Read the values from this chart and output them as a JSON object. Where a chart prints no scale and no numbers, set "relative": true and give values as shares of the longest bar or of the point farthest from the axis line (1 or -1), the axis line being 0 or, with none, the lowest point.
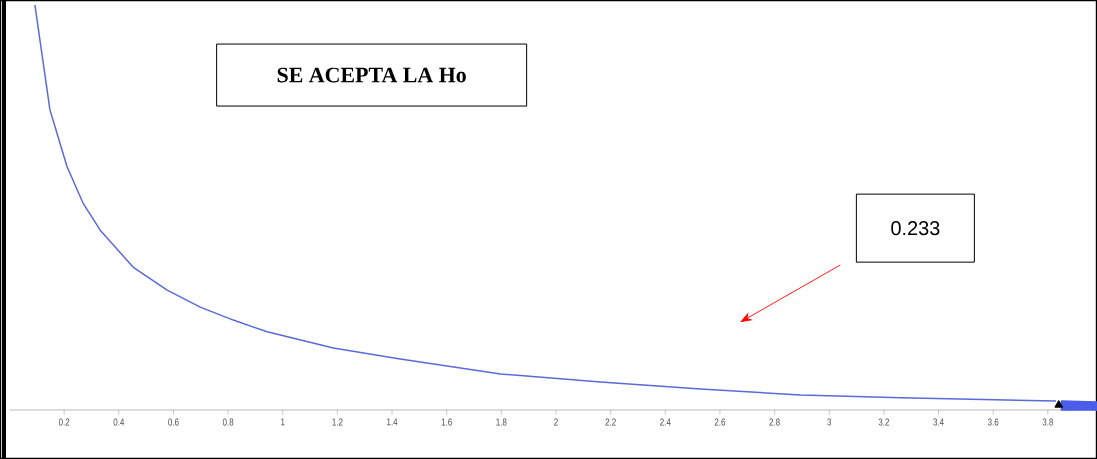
{
  "chart_data": {
    "type": "line",
    "relative": true,
    "x": [
      0.093,
      0.148,
      0.211,
      0.269,
      0.332,
      0.452,
      0.577,
      0.698,
      0.819,
      0.943,
      1.185,
      1.43,
      1.797,
      2.163,
      2.529,
      2.895,
      3.262,
      3.83
    ],
    "series": [
      {
        "color": "#5a6ad8",
        "values": [
          1.0,
          0.741,
          0.6,
          0.511,
          0.444,
          0.353,
          0.296,
          0.254,
          0.222,
          0.193,
          0.153,
          0.126,
          0.089,
          0.069,
          0.052,
          0.037,
          0.03,
          0.022
        ]
      },
      {
        "type": "scatter",
        "color": "#000000",
        "marker": "triangle",
        "x": [
          3.84
        ],
        "values": [
          0.012
        ]
      },
      {
        "type": "area",
        "color": "#4a5ce8",
        "x": [
          3.85,
          3.98
        ],
        "values": [
          0.022,
          0.02
        ]
      }
    ],
    "xlim": [
      0,
      3.98
    ],
    "xticks": [
      0.2,
      0.4,
      0.6,
      0.8,
      1,
      1.2,
      1.4,
      1.6,
      1.8,
      2,
      2.2,
      2.4,
      2.6,
      2.8,
      3,
      3.2,
      3.4,
      3.6,
      3.8
    ],
    "annotations": [
      "SE ACEPTA LA Ho",
      "0.233"
    ]
  }
}
